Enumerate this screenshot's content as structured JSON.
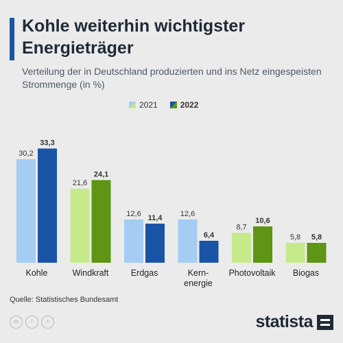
{
  "header": {
    "title": "Kohle weiterhin wichtigster Energieträger",
    "subtitle": "Verteilung der in Deutschland produzierten und ins Netz eingespeisten Strommenge (in %)"
  },
  "footer": {
    "source": "Quelle: Statistisches Bundesamt",
    "brand": "statista",
    "license_icons": [
      "cc-icon",
      "by-icon",
      "nd-icon"
    ]
  },
  "colors": {
    "background": "#ebebeb",
    "accent": "#1a54a6",
    "coal_2021": "#a5ccf3",
    "coal_2022": "#1a54a6",
    "green_2021": "#c6ea8b",
    "green_2022": "#5e9514"
  },
  "chart_data": {
    "type": "bar",
    "title": "Kohle weiterhin wichtigster Energieträger",
    "subtitle": "Verteilung der in Deutschland produzierten und ins Netz eingespeisten Strommenge (in %)",
    "categories": [
      "Kohle",
      "Windkraft",
      "Erdgas",
      "Kern-\nenergie",
      "Photovoltaik",
      "Biogas"
    ],
    "series": [
      {
        "name": "2021",
        "values": [
          30.2,
          21.6,
          12.6,
          12.6,
          8.7,
          5.8
        ],
        "labels": [
          "30,2",
          "21,6",
          "12,6",
          "12,6",
          "8,7",
          "5,8"
        ]
      },
      {
        "name": "2022",
        "values": [
          33.3,
          24.1,
          11.4,
          6.4,
          10.6,
          5.8
        ],
        "labels": [
          "33,3",
          "24,1",
          "11,4",
          "6,4",
          "10,6",
          "5,8"
        ]
      }
    ],
    "category_color_group": [
      "blue",
      "green",
      "blue",
      "blue",
      "green",
      "green"
    ],
    "ylim": [
      0,
      35
    ],
    "xlabel": "",
    "ylabel": "",
    "legend_position": "top-right",
    "grid": false
  }
}
